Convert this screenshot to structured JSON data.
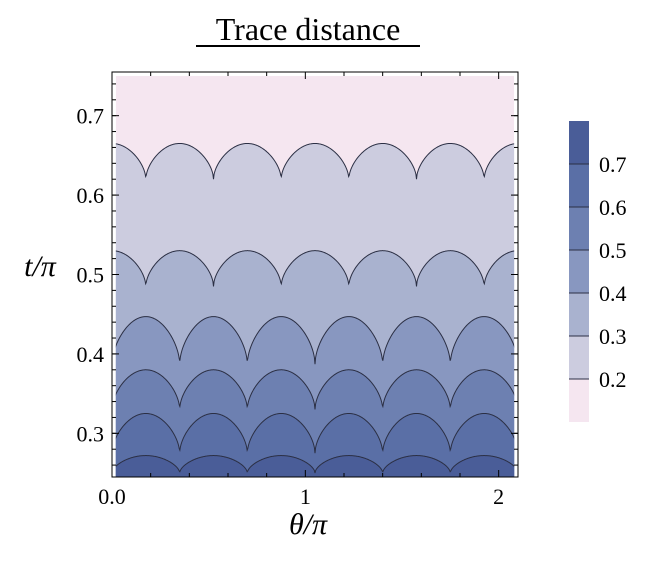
{
  "chart_data": {
    "type": "heatmap",
    "title": "Trace distance",
    "xlabel": "θ/π",
    "ylabel": "t/π",
    "xlim": [
      0.0,
      2.1
    ],
    "ylim": [
      0.245,
      0.755
    ],
    "x_ticks": [
      {
        "value": 0.0,
        "label": "0.0"
      },
      {
        "value": 1.0,
        "label": "1"
      },
      {
        "value": 2.0,
        "label": "2"
      }
    ],
    "y_ticks": [
      {
        "value": 0.3,
        "label": "0.3"
      },
      {
        "value": 0.4,
        "label": "0.4"
      },
      {
        "value": 0.5,
        "label": "0.5"
      },
      {
        "value": 0.6,
        "label": "0.6"
      },
      {
        "value": 0.7,
        "label": "0.7"
      }
    ],
    "colorbar": {
      "range": [
        0.1,
        0.8
      ],
      "ticks": [
        {
          "value": 0.7,
          "label": "0.7"
        },
        {
          "value": 0.6,
          "label": "0.6"
        },
        {
          "value": 0.5,
          "label": "0.5"
        },
        {
          "value": 0.4,
          "label": "0.4"
        },
        {
          "value": 0.3,
          "label": "0.3"
        },
        {
          "value": 0.2,
          "label": "0.2"
        }
      ]
    },
    "data_range": [
      0.245,
      0.75
    ],
    "plot_right": 2.08,
    "levels": [
      {
        "value": 0.2,
        "peak_t": 0.665,
        "valley_t": 0.62,
        "peak_color": "#ccccdf",
        "start_valley": false
      },
      {
        "value": 0.3,
        "peak_t": 0.53,
        "valley_t": 0.485,
        "peak_color": "#a9b2cf",
        "start_valley": false
      },
      {
        "value": 0.4,
        "peak_t": 0.447,
        "valley_t": 0.387,
        "peak_color": "#8897c0",
        "start_valley": true
      },
      {
        "value": 0.5,
        "peak_t": 0.38,
        "valley_t": 0.33,
        "peak_color": "#6d80b1",
        "start_valley": true
      },
      {
        "value": 0.6,
        "peak_t": 0.325,
        "valley_t": 0.275,
        "peak_color": "#5a6fa6",
        "start_valley": true
      },
      {
        "value": 0.7,
        "peak_t": 0.272,
        "valley_t": 0.25,
        "peak_color": "#4a5d98",
        "start_valley": true
      }
    ],
    "top_band_color": "#f5e6f0",
    "colorbar_colors": [
      "#f5e6f0",
      "#ccccdf",
      "#a9b2cf",
      "#8897c0",
      "#6d80b1",
      "#5a6fa6",
      "#4a5d98"
    ],
    "period": 0.35,
    "grid": false
  }
}
